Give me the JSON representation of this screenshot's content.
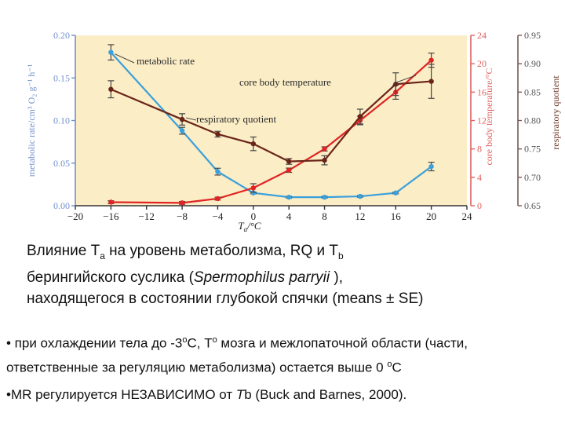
{
  "chart_data": {
    "type": "line",
    "x": [
      -16,
      -8,
      -4,
      0,
      4,
      8,
      12,
      16,
      20
    ],
    "xlim": [
      -20,
      24
    ],
    "xticks": [
      "−20",
      "−16",
      "−12",
      "−8",
      "−4",
      "0",
      "4",
      "8",
      "12",
      "16",
      "20",
      "24"
    ],
    "xlabel_main": "T",
    "xlabel_sub": "a",
    "xlabel_unit": "/°C",
    "y_left": {
      "label": "metabolic rate/cm³ O₂ g⁻¹ h⁻¹",
      "lim": [
        0,
        0.2
      ],
      "ticks": [
        "0.00",
        "0.05",
        "0.10",
        "0.15",
        "0.20"
      ],
      "color": "#7090c8"
    },
    "y_right1": {
      "label": "core body temperature/°C",
      "lim": [
        0,
        24
      ],
      "ticks": [
        "0",
        "4",
        "8",
        "12",
        "16",
        "20",
        "24"
      ],
      "color": "#e06060"
    },
    "y_right2": {
      "label": "respiratory quotient",
      "lim": [
        0.65,
        0.95
      ],
      "ticks": [
        "0.65",
        "0.70",
        "0.75",
        "0.80",
        "0.85",
        "0.90",
        "0.95"
      ],
      "color": "#6a3322"
    },
    "series": [
      {
        "name": "metabolic rate",
        "axis": "left",
        "color": "#3aa0dc",
        "values": [
          0.18,
          0.088,
          0.04,
          0.015,
          0.01,
          0.01,
          0.011,
          0.015,
          0.046
        ],
        "err": [
          0.009,
          0.004,
          0.004,
          0.001,
          0.001,
          0.001,
          0.001,
          0.001,
          0.005
        ]
      },
      {
        "name": "core body temperature",
        "axis": "right1",
        "color": "#e02424",
        "values": [
          0.5,
          0.4,
          1.0,
          2.5,
          5.0,
          8.0,
          12.0,
          16.0,
          20.5
        ],
        "err": [
          0.2,
          0.2,
          0.2,
          0.6,
          0.3,
          0.3,
          0.6,
          1.0,
          1.0
        ]
      },
      {
        "name": "respiratory quotient",
        "axis": "right2",
        "color": "#6a2418",
        "values": [
          0.855,
          0.802,
          0.776,
          0.759,
          0.728,
          0.73,
          0.807,
          0.864,
          0.869
        ],
        "err": [
          0.015,
          0.01,
          0.005,
          0.012,
          0.005,
          0.008,
          0.013,
          0.02,
          0.03
        ]
      }
    ]
  },
  "caption": {
    "line1_a": "Влияние T",
    "line1_sub_a": "a",
    "line1_b": " на уровень метаболизма,  RQ и T",
    "line1_sub_b": "b",
    "line2_a": "берингийского суслика (",
    "line2_italic": "Spermophilus parryii",
    "line2_b": " ),",
    "line3": "находящегося в  состоянии глубокой спячки (means ± SE)"
  },
  "bullets": {
    "b1_part1": "• при охлаждении тела до -3",
    "b1_sup1": "о",
    "b1_part2": "С, T",
    "b1_sup2": "о",
    "b1_part3": " мозга и межлопаточной области (части,",
    "b1_line2_a": "ответственные за регуляцию метаболизма) остается выше 0 ",
    "b1_line2_sup": "о",
    "b1_line2_b": "С",
    "b2_part1": "•MR регулируется НЕЗАВИСИМО от ",
    "b2_italic": "T",
    "b2_part2": "b  (Buck and Barnes, 2000)."
  }
}
